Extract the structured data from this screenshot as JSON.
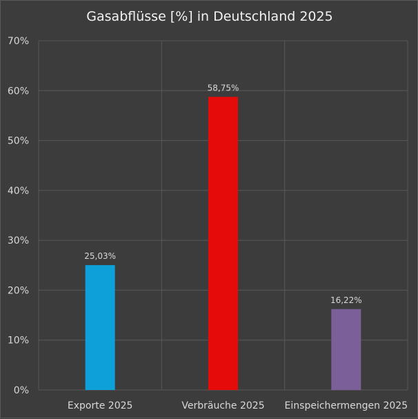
{
  "chart_data": {
    "type": "bar",
    "title": "Gasabflüsse [%] in Deutschland 2025",
    "categories": [
      "Exporte 2025",
      "Verbräuche 2025",
      "Einspeichermengen 2025"
    ],
    "values": [
      25.03,
      58.75,
      16.22
    ],
    "data_labels": [
      "25,03%",
      "58,75%",
      "16,22%"
    ],
    "colors": [
      "#0ea0d8",
      "#e50b0b",
      "#7a5f99"
    ],
    "ylim": [
      0,
      70
    ],
    "yticks": [
      0,
      10,
      20,
      30,
      40,
      50,
      60,
      70
    ],
    "ytick_labels": [
      "0%",
      "10%",
      "20%",
      "30%",
      "40%",
      "50%",
      "60%",
      "70%"
    ],
    "grid": true,
    "legend": "none",
    "xlabel": "",
    "ylabel": ""
  }
}
